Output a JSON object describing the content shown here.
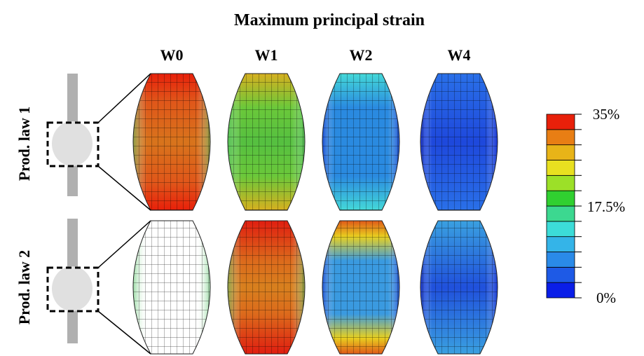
{
  "title": "Maximum principal strain",
  "columns": [
    "W0",
    "W1",
    "W2",
    "W4"
  ],
  "rows": [
    "Prod. law 1",
    "Prod. law 2"
  ],
  "colorbar": {
    "labels": [
      "35%",
      "17.5%",
      "0%"
    ]
  }
}
